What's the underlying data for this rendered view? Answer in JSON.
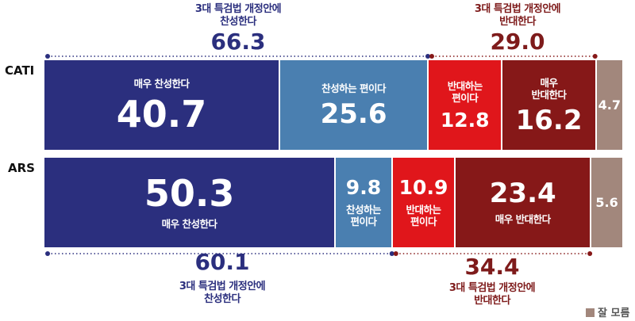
{
  "chart_data": {
    "type": "bar",
    "orientation": "horizontal-stacked-100",
    "categories": [
      "CATI",
      "ARS"
    ],
    "series": [
      {
        "name": "매우 찬성한다",
        "color": "#2b2f7e",
        "values": [
          40.7,
          50.3
        ]
      },
      {
        "name": "찬성하는 편이다",
        "color": "#4a7fb0",
        "values": [
          25.6,
          9.8
        ]
      },
      {
        "name": "반대하는 편이다",
        "color": "#e0161b",
        "values": [
          12.8,
          10.9
        ]
      },
      {
        "name": "매우 반대한다",
        "color": "#861818",
        "values": [
          16.2,
          23.4
        ]
      },
      {
        "name": "잘 모름",
        "color": "#a2877c",
        "values": [
          4.7,
          5.6
        ]
      }
    ],
    "rows": [
      {
        "label": "CATI",
        "segments": [
          {
            "value": "40.7",
            "label": "매우 찬성한다",
            "layout": "label-top"
          },
          {
            "value": "25.6",
            "label": "찬성하는 편이다",
            "layout": "label-top"
          },
          {
            "value": "12.8",
            "label": "반대하는\n편이다",
            "layout": "label-top"
          },
          {
            "value": "16.2",
            "label": "매우\n반대한다",
            "layout": "label-top"
          },
          {
            "value": "4.7",
            "label": "",
            "layout": "value-only"
          }
        ],
        "agree_total": {
          "caption": "3대 특검법 개정안에\n찬성한다",
          "value": "66.3"
        },
        "oppose_total": {
          "caption": "3대 특검법 개정안에\n반대한다",
          "value": "29.0"
        }
      },
      {
        "label": "ARS",
        "segments": [
          {
            "value": "50.3",
            "label": "매우 찬성한다",
            "layout": "label-bottom"
          },
          {
            "value": "9.8",
            "label": "찬성하는\n편이다",
            "layout": "label-bottom"
          },
          {
            "value": "10.9",
            "label": "반대하는\n편이다",
            "layout": "label-bottom"
          },
          {
            "value": "23.4",
            "label": "매우 반대한다",
            "layout": "label-bottom"
          },
          {
            "value": "5.6",
            "label": "",
            "layout": "value-only"
          }
        ],
        "agree_total": {
          "caption": "3대 특검법 개정안에\n찬성한다",
          "value": "60.1"
        },
        "oppose_total": {
          "caption": "3대 특검법 개정안에\n반대한다",
          "value": "34.4"
        }
      }
    ],
    "legend": [
      {
        "label": "잘 모름",
        "color": "#a2877c"
      }
    ],
    "legend_position": "bottom-right"
  }
}
